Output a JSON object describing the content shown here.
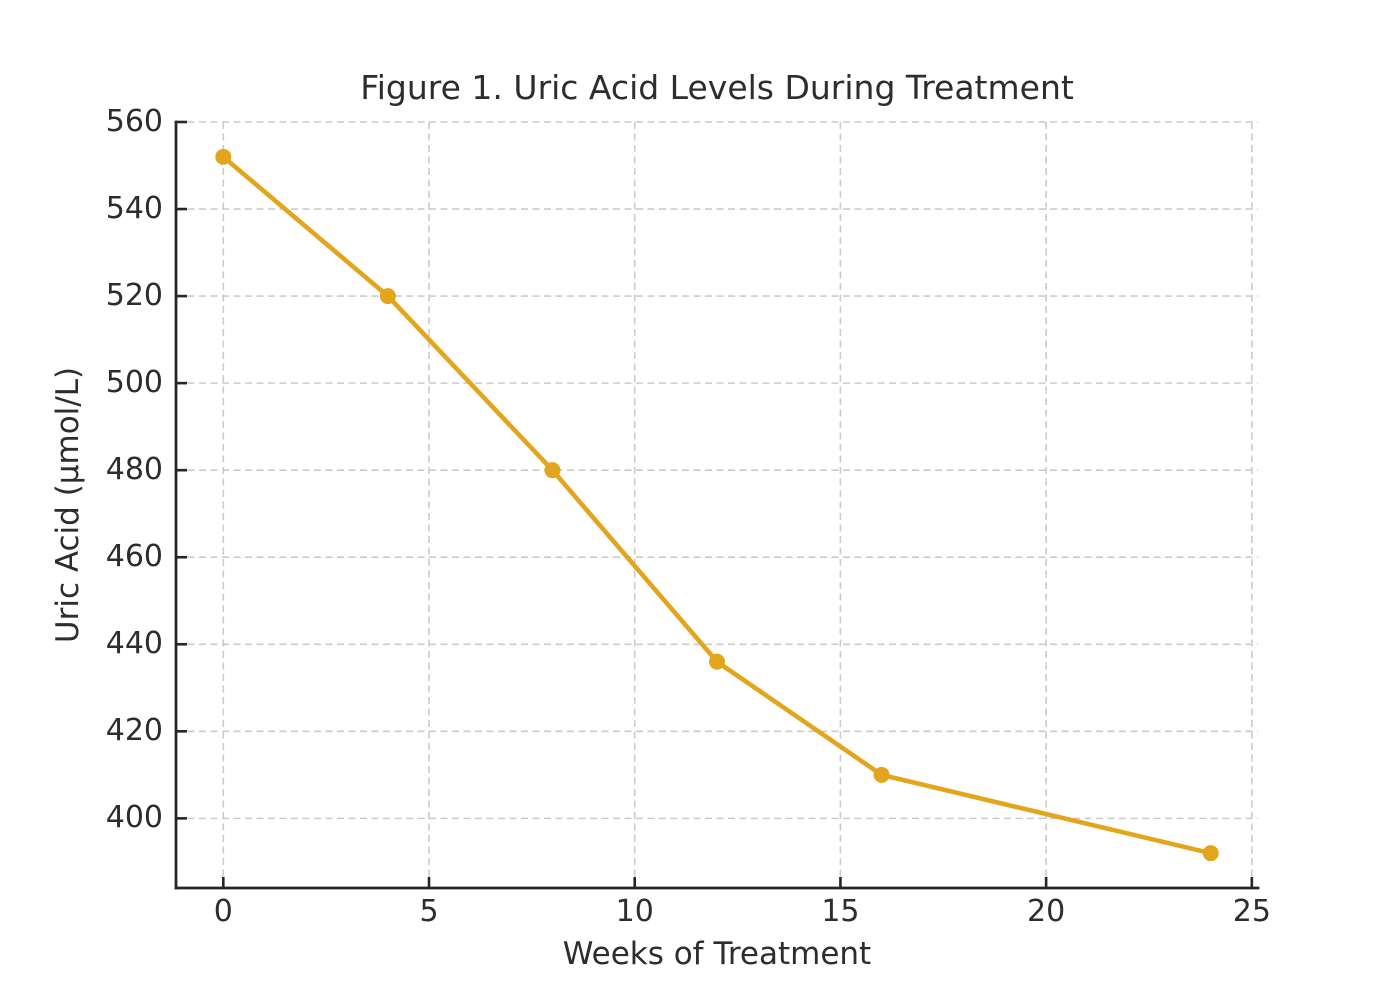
{
  "chart_data": {
    "type": "line",
    "title": "Figure 1. Uric Acid Levels During Treatment",
    "xlabel": "Weeks of Treatment",
    "ylabel": "Uric Acid (μmol/L)",
    "series": [
      {
        "name": "Uric Acid",
        "x": [
          0,
          4,
          8,
          12,
          16,
          24
        ],
        "y": [
          552,
          520,
          480,
          436,
          410,
          392
        ]
      }
    ],
    "xticks": [
      0,
      5,
      10,
      15,
      20,
      25
    ],
    "yticks": [
      400,
      420,
      440,
      460,
      480,
      500,
      520,
      540,
      560
    ],
    "xlim": [
      -1.15,
      25.15
    ],
    "ylim": [
      384,
      560
    ],
    "grid": true,
    "grid_style": "dashed",
    "legend": "none",
    "colors": {
      "line": "#E2A51B",
      "marker": "#E2A51B",
      "grid": "#CBCBCB",
      "axis": "#262626",
      "text": "#2D2D2D",
      "background": "#FFFFFF"
    }
  }
}
